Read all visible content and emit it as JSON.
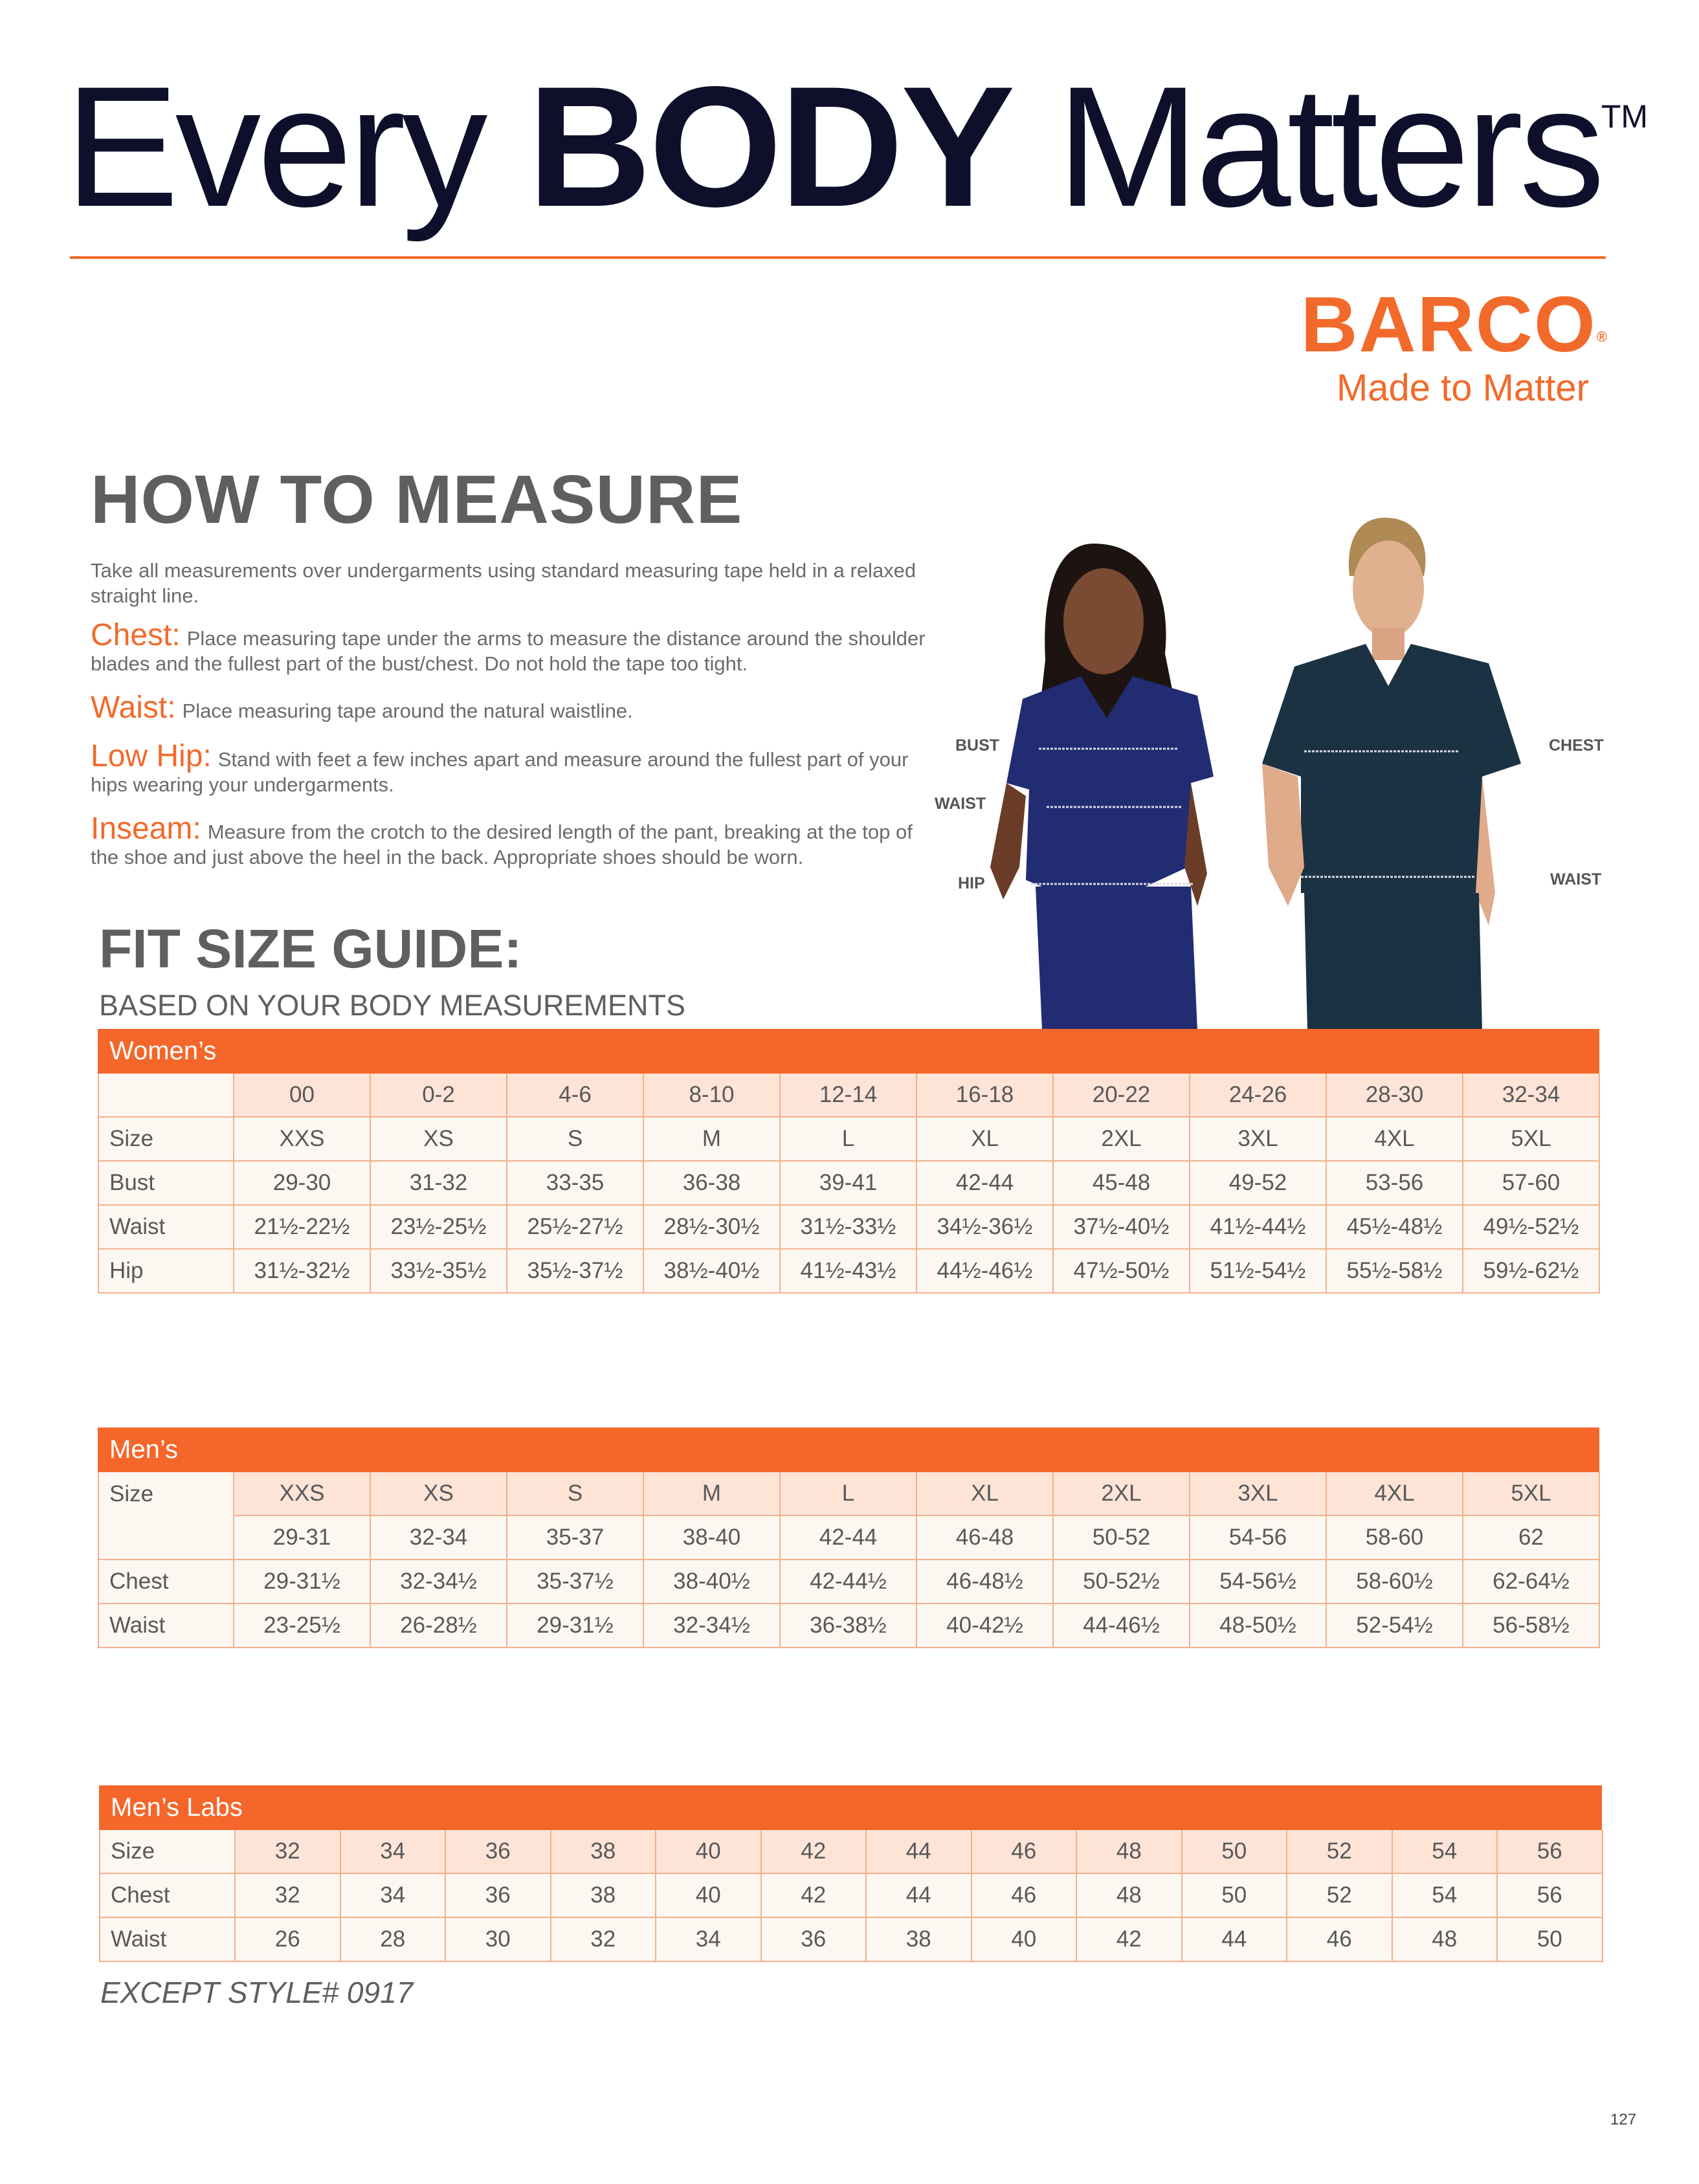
{
  "hero": {
    "word1": "Every",
    "word2": "BODY",
    "word3": "Matters",
    "trademark": "TM"
  },
  "brand": {
    "name": "BARCO",
    "registered": "®",
    "tagline": "Made to Matter",
    "accent": "#f26a2b"
  },
  "how_to_measure": {
    "title": "HOW TO MEASURE",
    "intro": "Take all measurements over undergarments using standard measuring tape held in a relaxed straight line.",
    "items": [
      {
        "label": "Chest:",
        "text": "Place measuring tape under the arms to measure the distance around the shoulder blades and the fullest part of the bust/chest. Do not hold the tape too tight."
      },
      {
        "label": "Waist:",
        "text": "Place measuring tape around the natural waistline."
      },
      {
        "label": "Low Hip:",
        "text": "Stand with feet a few inches apart and measure around the fullest part of your hips wearing your undergarments."
      },
      {
        "label": "Inseam:",
        "text": "Measure from the crotch to the desired length of the pant, breaking at the top of the shoe and just above the heel in the back. Appropriate shoes should be worn."
      }
    ]
  },
  "figure_labels": {
    "bust": "BUST",
    "waist_w": "WAIST",
    "hip": "HIP",
    "chest": "CHEST",
    "waist_m": "WAIST"
  },
  "fit_guide": {
    "title": "FIT SIZE GUIDE:",
    "subtitle": "BASED ON YOUR BODY MEASUREMENTS"
  },
  "womens": {
    "title": "Women’s",
    "header": [
      "",
      "00",
      "0-2",
      "4-6",
      "8-10",
      "12-14",
      "16-18",
      "20-22",
      "24-26",
      "28-30",
      "32-34"
    ],
    "rows": [
      [
        "Size",
        "XXS",
        "XS",
        "S",
        "M",
        "L",
        "XL",
        "2XL",
        "3XL",
        "4XL",
        "5XL"
      ],
      [
        "Bust",
        "29-30",
        "31-32",
        "33-35",
        "36-38",
        "39-41",
        "42-44",
        "45-48",
        "49-52",
        "53-56",
        "57-60"
      ],
      [
        "Waist",
        "21½-22½",
        "23½-25½",
        "25½-27½",
        "28½-30½",
        "31½-33½",
        "34½-36½",
        "37½-40½",
        "41½-44½",
        "45½-48½",
        "49½-52½"
      ],
      [
        "Hip",
        "31½-32½",
        "33½-35½",
        "35½-37½",
        "38½-40½",
        "41½-43½",
        "44½-46½",
        "47½-50½",
        "51½-54½",
        "55½-58½",
        "59½-62½"
      ]
    ]
  },
  "mens": {
    "title": "Men’s",
    "size_label": "Size",
    "header": [
      "XXS",
      "XS",
      "S",
      "M",
      "L",
      "XL",
      "2XL",
      "3XL",
      "4XL",
      "5XL"
    ],
    "size_ranges": [
      "29-31",
      "32-34",
      "35-37",
      "38-40",
      "42-44",
      "46-48",
      "50-52",
      "54-56",
      "58-60",
      "62"
    ],
    "rows": [
      [
        "Chest",
        "29-31½",
        "32-34½",
        "35-37½",
        "38-40½",
        "42-44½",
        "46-48½",
        "50-52½",
        "54-56½",
        "58-60½",
        "62-64½"
      ],
      [
        "Waist",
        "23-25½",
        "26-28½",
        "29-31½",
        "32-34½",
        "36-38½",
        "40-42½",
        "44-46½",
        "48-50½",
        "52-54½",
        "56-58½"
      ]
    ]
  },
  "mens_labs": {
    "title": "Men’s Labs",
    "rows": [
      [
        "Size",
        "32",
        "34",
        "36",
        "38",
        "40",
        "42",
        "44",
        "46",
        "48",
        "50",
        "52",
        "54",
        "56"
      ],
      [
        "Chest",
        "32",
        "34",
        "36",
        "38",
        "40",
        "42",
        "44",
        "46",
        "48",
        "50",
        "52",
        "54",
        "56"
      ],
      [
        "Waist",
        "26",
        "28",
        "30",
        "32",
        "34",
        "36",
        "38",
        "40",
        "42",
        "44",
        "46",
        "48",
        "50"
      ]
    ],
    "note": "EXCEPT STYLE# 0917"
  },
  "page_number": "127"
}
